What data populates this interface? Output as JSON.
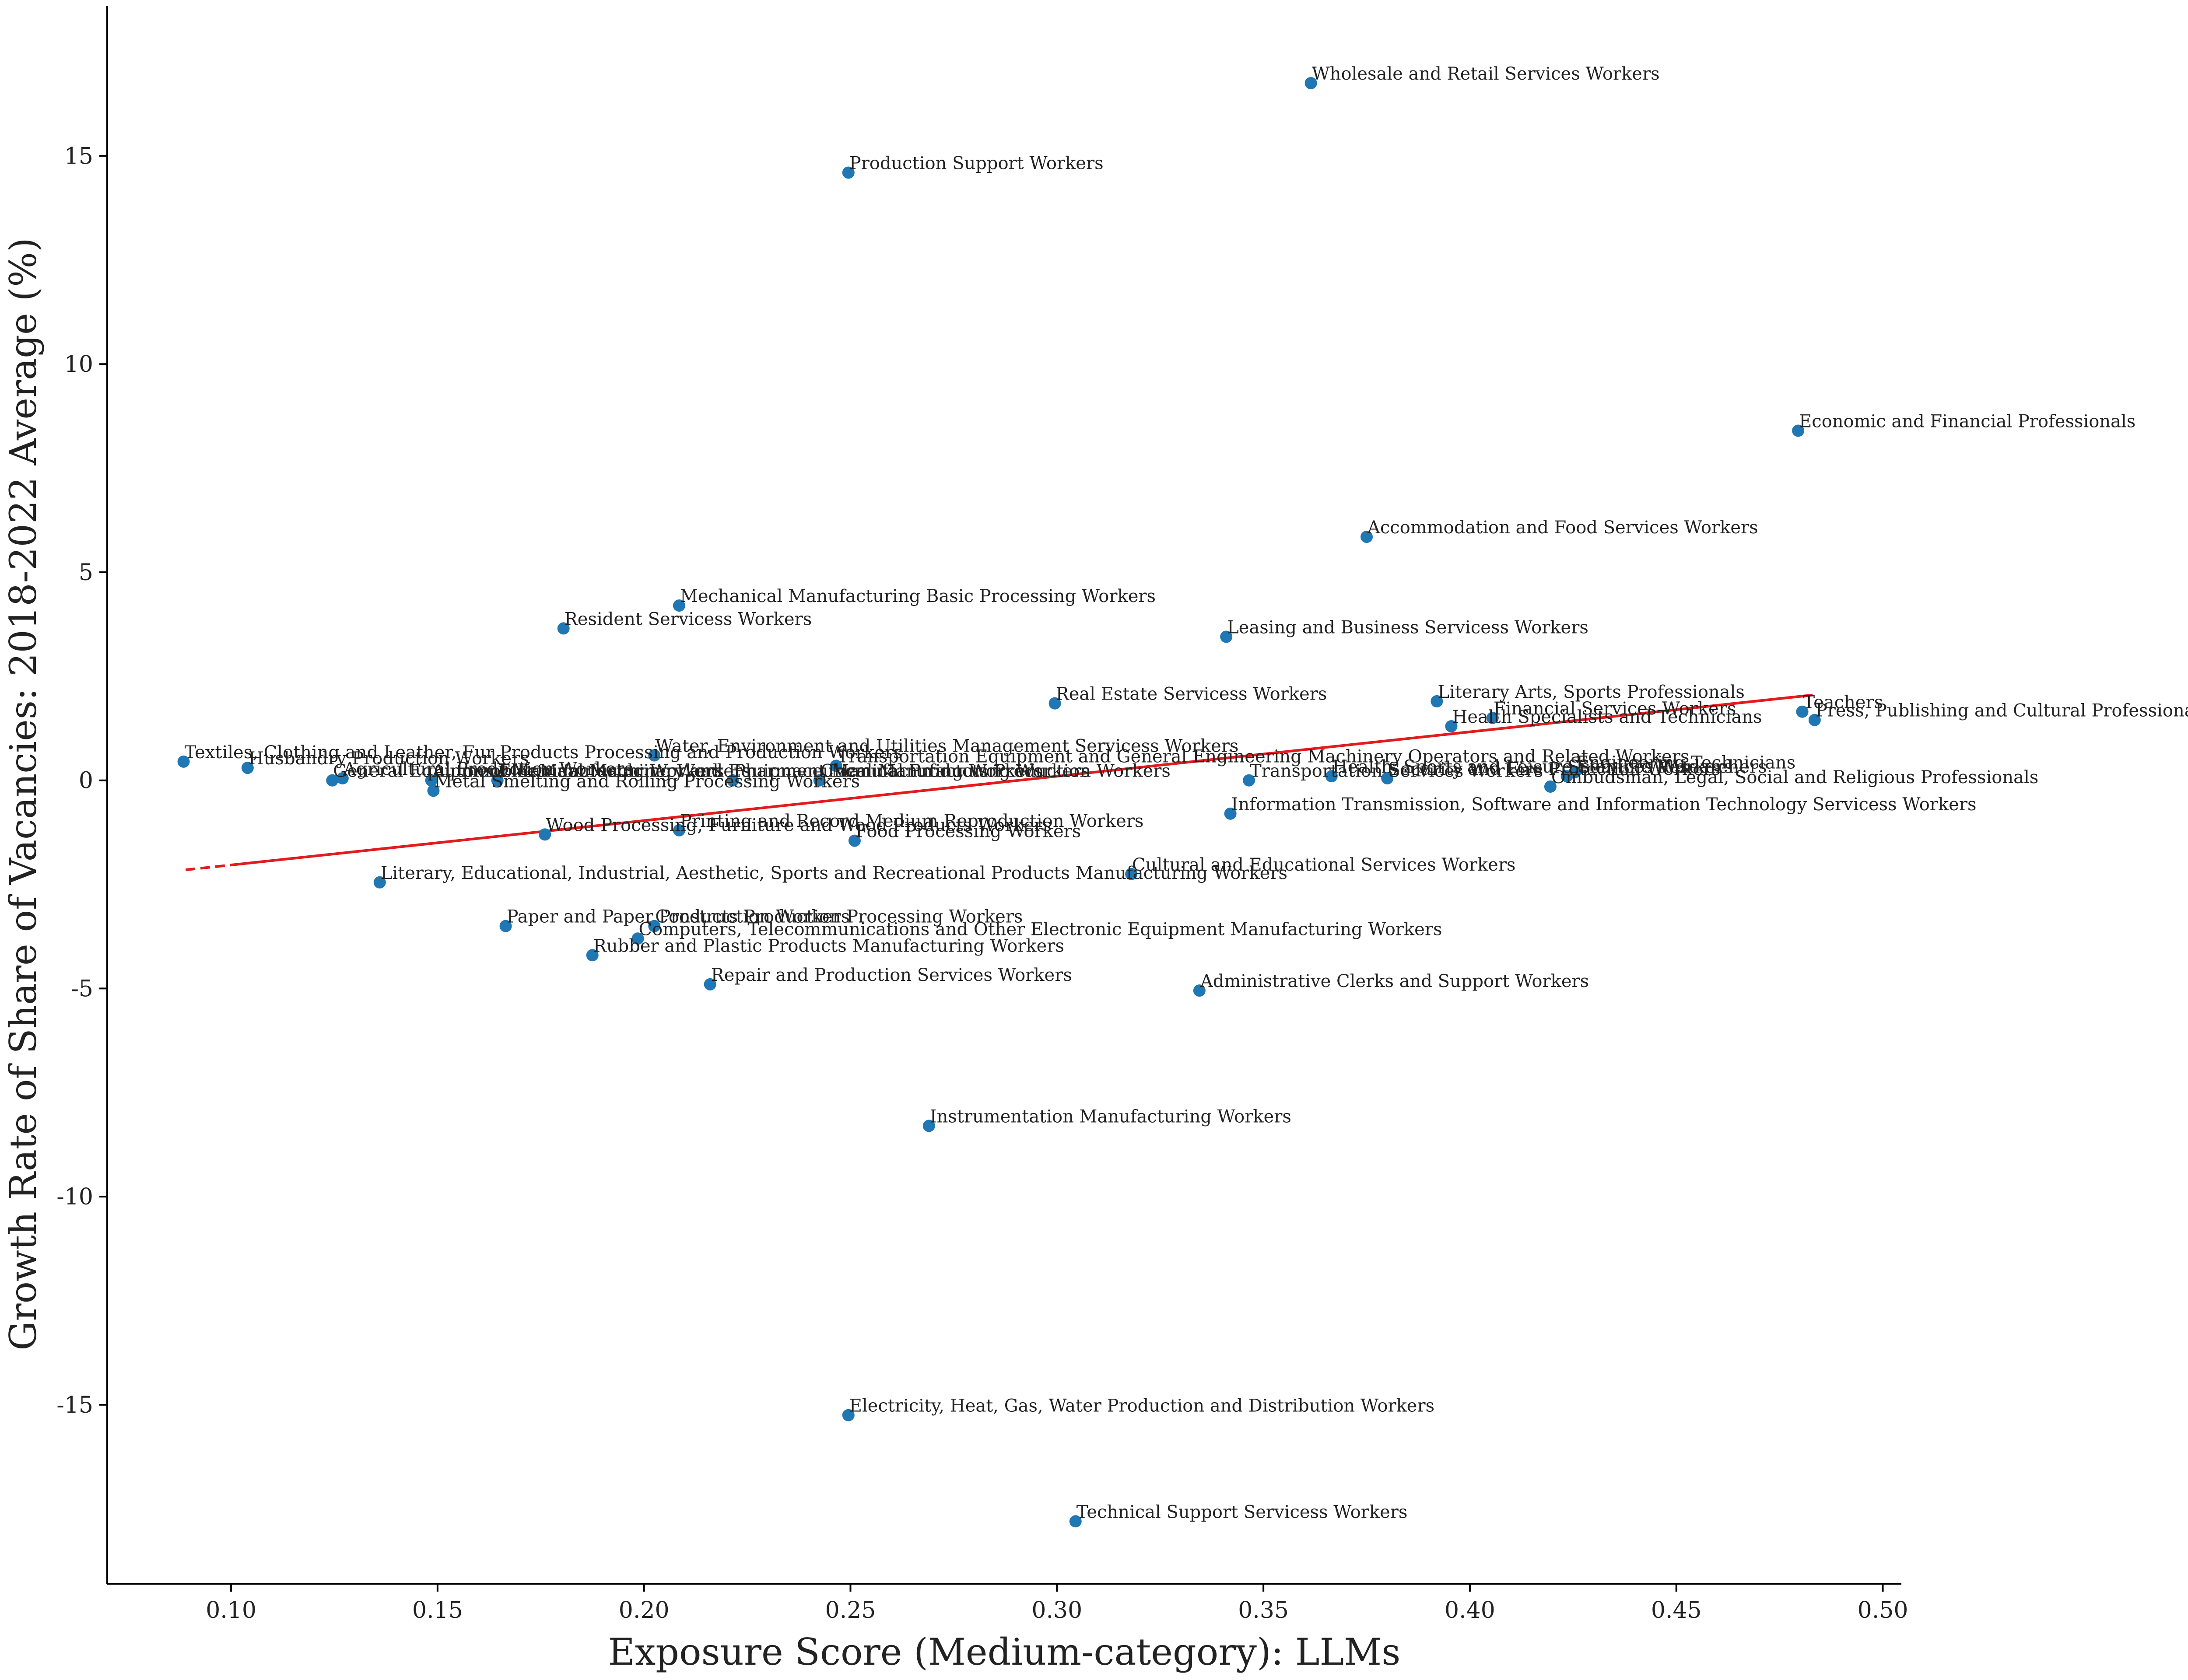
{
  "chart_data": {
    "type": "scatter",
    "title": "",
    "xlabel": "Exposure Score (Medium-category): LLMs",
    "ylabel": "Growth Rate of Share of Vacancies: 2018-2022 Average (%)",
    "xlim": [
      0.07,
      0.5045
    ],
    "ylim": [
      -19.3,
      18.6
    ],
    "x_ticks": [
      0.1,
      0.15,
      0.2,
      0.25,
      0.3,
      0.35,
      0.4,
      0.45,
      0.5
    ],
    "x_tick_labels": [
      "0.10",
      "0.15",
      "0.20",
      "0.25",
      "0.30",
      "0.35",
      "0.40",
      "0.45",
      "0.50"
    ],
    "y_ticks": [
      15,
      10,
      5,
      0,
      -5,
      -10,
      -15
    ],
    "y_tick_labels": [
      "15",
      "10",
      "5",
      "0",
      "-5",
      "-10",
      "-15"
    ],
    "grid": false,
    "point_color": "#1f77b4",
    "trend_color": "#e41a1c",
    "trend_line": {
      "x_start": 0.089,
      "x_end": 0.483,
      "y_start": -2.15,
      "y_end": 2.05,
      "dashed_until_x": 0.101
    },
    "points": [
      {
        "label": "Wholesale and Retail Services Workers",
        "x": 0.3615,
        "y": 16.75
      },
      {
        "label": "Production Support Workers",
        "x": 0.2495,
        "y": 14.6
      },
      {
        "label": "Economic and Financial Professionals",
        "x": 0.4795,
        "y": 8.4
      },
      {
        "label": "Accommodation and Food Services Workers",
        "x": 0.375,
        "y": 5.85
      },
      {
        "label": "Mechanical Manufacturing Basic Processing Workers",
        "x": 0.2085,
        "y": 4.2
      },
      {
        "label": "Resident Servicess Workers",
        "x": 0.1805,
        "y": 3.65
      },
      {
        "label": "Leasing and Business Servicess Workers",
        "x": 0.341,
        "y": 3.45
      },
      {
        "label": "Real Estate Servicess Workers",
        "x": 0.2995,
        "y": 1.85
      },
      {
        "label": "Literary Arts, Sports Professionals",
        "x": 0.392,
        "y": 1.9
      },
      {
        "label": "Financial Services Workers",
        "x": 0.4055,
        "y": 1.5
      },
      {
        "label": "Health Specialists and Technicians",
        "x": 0.3955,
        "y": 1.3
      },
      {
        "label": "Teachers",
        "x": 0.4805,
        "y": 1.65
      },
      {
        "label": "Press, Publishing and Cultural Professionals",
        "x": 0.4835,
        "y": 1.45
      },
      {
        "label": "Water, Environment and Utilities Management Servicess Workers",
        "x": 0.2025,
        "y": 0.6
      },
      {
        "label": "Textiles, Clothing and Leather, Fur Products Processing and Production Workers",
        "x": 0.0885,
        "y": 0.45
      },
      {
        "label": "Husbandry Production Workers",
        "x": 0.104,
        "y": 0.3
      },
      {
        "label": "Transportation Equipment and General Engineering Machinery Operators and Related Workers",
        "x": 0.2465,
        "y": 0.35
      },
      {
        "label": "Engineering Technicians",
        "x": 0.4255,
        "y": 0.2
      },
      {
        "label": "Health, Sports and Leisure Services Workers",
        "x": 0.3665,
        "y": 0.1
      },
      {
        "label": "Scientific Researchers",
        "x": 0.4235,
        "y": 0.1
      },
      {
        "label": "General Equipment Manufacturing Workers",
        "x": 0.1245,
        "y": 0.0
      },
      {
        "label": "Agricultural Production Workers",
        "x": 0.127,
        "y": 0.05
      },
      {
        "label": "Automobile Manufacturing Workers",
        "x": 0.1485,
        "y": 0.0
      },
      {
        "label": "Electrical Machinery and Equipment Manufacturing Workers",
        "x": 0.1645,
        "y": 0.0
      },
      {
        "label": "Pharmaceutical Manufacturing Workers",
        "x": 0.2215,
        "y": 0.0
      },
      {
        "label": "Chemical Products Production Workers",
        "x": 0.2425,
        "y": 0.0
      },
      {
        "label": "Transportation Services Workers",
        "x": 0.3465,
        "y": 0.0
      },
      {
        "label": "Security and Fire Protection Workers",
        "x": 0.38,
        "y": 0.05
      },
      {
        "label": "Ombudsman, Legal, Social and Religious Professionals",
        "x": 0.4195,
        "y": -0.15
      },
      {
        "label": "Metal Smelting and Rolling Processing Workers",
        "x": 0.149,
        "y": -0.25
      },
      {
        "label": "Information Transmission, Software and Information Technology Servicess Workers",
        "x": 0.342,
        "y": -0.8
      },
      {
        "label": "Wood Processing, Furniture and Wood Products Workers",
        "x": 0.176,
        "y": -1.3
      },
      {
        "label": "Printing and Record Medium Reproduction Workers",
        "x": 0.2085,
        "y": -1.2
      },
      {
        "label": "Food Processing Workers",
        "x": 0.251,
        "y": -1.45
      },
      {
        "label": "Literary, Educational, Industrial, Aesthetic, Sports and Recreational Products Manufacturing Workers",
        "x": 0.136,
        "y": -2.45
      },
      {
        "label": "Cultural and Educational Services Workers",
        "x": 0.318,
        "y": -2.25
      },
      {
        "label": "Paper and Paper Products Production Processing Workers",
        "x": 0.1665,
        "y": -3.5
      },
      {
        "label": "Construction Workers",
        "x": 0.2025,
        "y": -3.5
      },
      {
        "label": "Computers, Telecommunications and Other Electronic Equipment Manufacturing Workers",
        "x": 0.1985,
        "y": -3.8
      },
      {
        "label": "Rubber and Plastic Products Manufacturing Workers",
        "x": 0.1875,
        "y": -4.2
      },
      {
        "label": "Repair and Production Services Workers",
        "x": 0.216,
        "y": -4.9
      },
      {
        "label": "Administrative Clerks and Support Workers",
        "x": 0.3345,
        "y": -5.05
      },
      {
        "label": "Instrumentation Manufacturing Workers",
        "x": 0.269,
        "y": -8.3
      },
      {
        "label": "Electricity, Heat, Gas, Water Production and Distribution Workers",
        "x": 0.2495,
        "y": -15.25
      },
      {
        "label": "Technical Support Servicess Workers",
        "x": 0.3045,
        "y": -17.8
      }
    ]
  }
}
